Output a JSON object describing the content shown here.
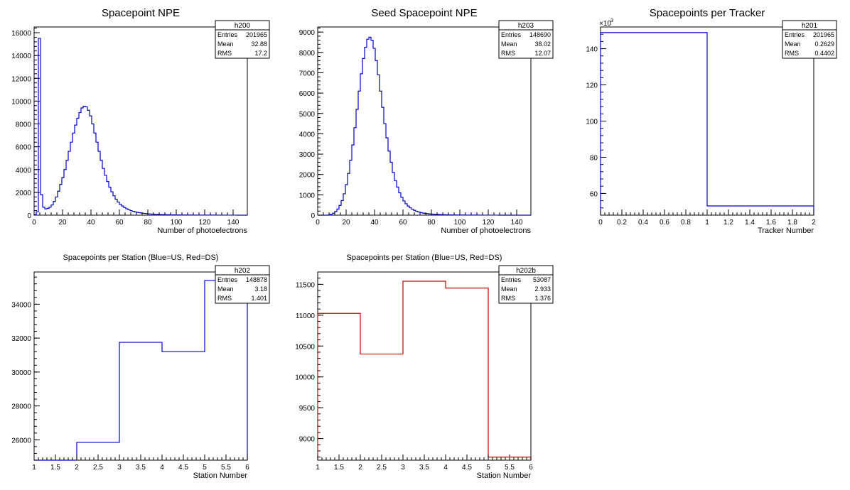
{
  "chart_data": [
    {
      "id": "h200",
      "type": "histogram",
      "title": "Spacepoint NPE",
      "xlabel": "Number of photoelectrons",
      "ylabel": "",
      "xlim": [
        0,
        150
      ],
      "ylim": [
        0,
        16500
      ],
      "xticks": [
        0,
        20,
        40,
        60,
        80,
        100,
        120,
        140
      ],
      "yticks": [
        0,
        2000,
        4000,
        6000,
        8000,
        10000,
        12000,
        14000,
        16000
      ],
      "color": "#0000cc",
      "stats": {
        "name": "h200",
        "rows": [
          [
            "Entries",
            "201965"
          ],
          [
            "Mean",
            "32.88"
          ],
          [
            "RMS",
            "17.2"
          ]
        ]
      },
      "bin_width": 1.5,
      "values": [
        50,
        300,
        15500,
        1800,
        700,
        550,
        600,
        700,
        900,
        1200,
        1600,
        2100,
        2700,
        3300,
        4000,
        4800,
        5600,
        6400,
        7200,
        7900,
        8500,
        9000,
        9400,
        9550,
        9500,
        9200,
        8700,
        8000,
        7200,
        6400,
        5600,
        4800,
        4100,
        3500,
        2950,
        2450,
        2050,
        1700,
        1400,
        1150,
        950,
        800,
        670,
        560,
        470,
        400,
        340,
        290,
        250,
        215,
        185,
        160,
        140,
        120,
        105,
        92,
        82,
        73,
        65,
        58,
        52,
        47,
        42,
        38,
        34,
        30,
        27,
        24,
        22,
        20,
        18,
        16,
        15,
        14,
        13,
        12,
        11,
        10,
        9,
        8,
        8,
        7,
        7,
        6,
        6,
        5,
        5,
        5,
        4,
        4,
        4,
        3,
        3,
        3,
        3,
        2,
        2,
        2,
        2,
        2
      ]
    },
    {
      "id": "h203",
      "type": "histogram",
      "title": "Seed Spacepoint NPE",
      "xlabel": "Number of photoelectrons",
      "ylabel": "",
      "xlim": [
        0,
        150
      ],
      "ylim": [
        0,
        9250
      ],
      "xticks": [
        0,
        20,
        40,
        60,
        80,
        100,
        120,
        140
      ],
      "yticks": [
        0,
        1000,
        2000,
        3000,
        4000,
        5000,
        6000,
        7000,
        8000,
        9000
      ],
      "color": "#0000cc",
      "stats": {
        "name": "h203",
        "rows": [
          [
            "Entries",
            "148690"
          ],
          [
            "Mean",
            "38.02"
          ],
          [
            "RMS",
            "12.07"
          ]
        ]
      },
      "bin_width": 1.5,
      "values": [
        0,
        0,
        0,
        0,
        0,
        20,
        50,
        100,
        180,
        300,
        480,
        720,
        1050,
        1500,
        2050,
        2700,
        3450,
        4300,
        5200,
        6100,
        6950,
        7700,
        8250,
        8650,
        8750,
        8600,
        8200,
        7600,
        6900,
        6100,
        5300,
        4500,
        3800,
        3150,
        2600,
        2100,
        1700,
        1380,
        1100,
        880,
        700,
        560,
        450,
        360,
        290,
        235,
        190,
        155,
        128,
        105,
        88,
        74,
        62,
        53,
        45,
        39,
        34,
        30,
        26,
        23,
        20,
        18,
        16,
        14,
        12,
        11,
        10,
        9,
        8,
        7,
        6,
        6,
        5,
        5,
        4,
        4,
        3,
        3,
        3,
        3,
        2,
        2,
        2,
        2,
        2,
        1,
        1,
        1,
        1,
        1,
        1,
        1,
        1,
        1,
        1,
        0,
        0,
        0,
        0,
        0
      ]
    },
    {
      "id": "h201",
      "type": "histogram",
      "title": "Spacepoints per Tracker",
      "xlabel": "Tracker Number",
      "ylabel": "",
      "multiplier_label": "×10",
      "multiplier_exp": "3",
      "xlim": [
        0,
        2
      ],
      "ylim": [
        48,
        152
      ],
      "xticks": [
        0,
        0.2,
        0.4,
        0.6,
        0.8,
        1,
        1.2,
        1.4,
        1.6,
        1.8,
        2
      ],
      "yticks": [
        60,
        80,
        100,
        120,
        140
      ],
      "color": "#0000cc",
      "stats": {
        "name": "h201",
        "rows": [
          [
            "Entries",
            "201965"
          ],
          [
            "Mean",
            "0.2629"
          ],
          [
            "RMS",
            "0.4402"
          ]
        ]
      },
      "bin_edges": [
        0,
        1,
        2
      ],
      "values": [
        148.9,
        53.1
      ]
    },
    {
      "id": "h202",
      "type": "histogram",
      "title": "Spacepoints per Station (Blue=US, Red=DS)",
      "xlabel": "Station Number",
      "ylabel": "",
      "xlim": [
        1,
        6
      ],
      "ylim": [
        24800,
        35900
      ],
      "xticks": [
        1,
        1.5,
        2,
        2.5,
        3,
        3.5,
        4,
        4.5,
        5,
        5.5,
        6
      ],
      "yticks": [
        26000,
        28000,
        30000,
        32000,
        34000
      ],
      "color": "#0000cc",
      "stats": {
        "name": "h202",
        "rows": [
          [
            "Entries",
            "148878"
          ],
          [
            "Mean",
            "3.18"
          ],
          [
            "RMS",
            "1.401"
          ]
        ]
      },
      "bin_edges": [
        1,
        2,
        3,
        4,
        5,
        6
      ],
      "values": [
        24650,
        25850,
        31750,
        31200,
        35400
      ]
    },
    {
      "id": "h202b",
      "type": "histogram",
      "title": "Spacepoints per Station (Blue=US, Red=DS)",
      "xlabel": "Station Number",
      "ylabel": "",
      "xlim": [
        1,
        6
      ],
      "ylim": [
        8650,
        11700
      ],
      "xticks": [
        1,
        1.5,
        2,
        2.5,
        3,
        3.5,
        4,
        4.5,
        5,
        5.5,
        6
      ],
      "yticks": [
        9000,
        9500,
        10000,
        10500,
        11000,
        11500
      ],
      "color": "#cc0000",
      "stats": {
        "name": "h202b",
        "rows": [
          [
            "Entries",
            "53087"
          ],
          [
            "Mean",
            "2.933"
          ],
          [
            "RMS",
            "1.376"
          ]
        ]
      },
      "bin_edges": [
        1,
        2,
        3,
        4,
        5,
        6
      ],
      "values": [
        11030,
        10370,
        11550,
        11440,
        8700
      ]
    }
  ]
}
